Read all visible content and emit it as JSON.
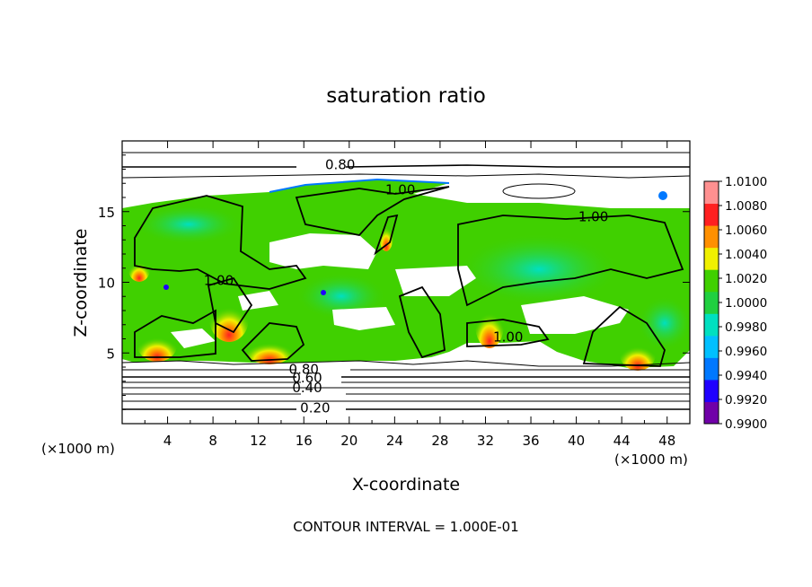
{
  "chart_data": {
    "type": "heatmap",
    "title": "saturation ratio",
    "xlabel": "X-coordinate",
    "ylabel": "Z-coordinate",
    "x_unit_label": "(×1000 m)",
    "z_unit_label": "(×1000 m)",
    "xlim": [
      0,
      50
    ],
    "ylim": [
      0,
      20
    ],
    "x_ticks": [
      "4",
      "8",
      "12",
      "16",
      "20",
      "24",
      "28",
      "32",
      "36",
      "40",
      "44",
      "48"
    ],
    "y_ticks": [
      "5",
      "10",
      "15"
    ],
    "footer": "CONTOUR INTERVAL = 1.000E-01",
    "colorbar": {
      "min": 0.99,
      "max": 1.01,
      "labels": [
        "1.0100",
        "1.0080",
        "1.0060",
        "1.0040",
        "1.0020",
        "1.0000",
        "0.9980",
        "0.9960",
        "0.9940",
        "0.9920",
        "0.9900"
      ],
      "colors": [
        "#7000a8",
        "#2000ff",
        "#0078ff",
        "#00c0ff",
        "#00e0c0",
        "#20d040",
        "#40d000",
        "#f0f000",
        "#ff9000",
        "#ff2020",
        "#ff9090"
      ]
    },
    "contour_labels": [
      {
        "text": "0.80",
        "x": 19.2,
        "y": 18.2
      },
      {
        "text": "1.00",
        "x": 24.5,
        "y": 16.4
      },
      {
        "text": "1.00",
        "x": 41.5,
        "y": 14.5
      },
      {
        "text": "1.00",
        "x": 8.5,
        "y": 10.0
      },
      {
        "text": "1.00",
        "x": 34.0,
        "y": 6.0
      },
      {
        "text": "0.80",
        "x": 16.0,
        "y": 3.7
      },
      {
        "text": "0.60",
        "x": 16.3,
        "y": 3.1
      },
      {
        "text": "0.40",
        "x": 16.3,
        "y": 2.4
      },
      {
        "text": "0.20",
        "x": 17.0,
        "y": 1.0
      }
    ]
  }
}
